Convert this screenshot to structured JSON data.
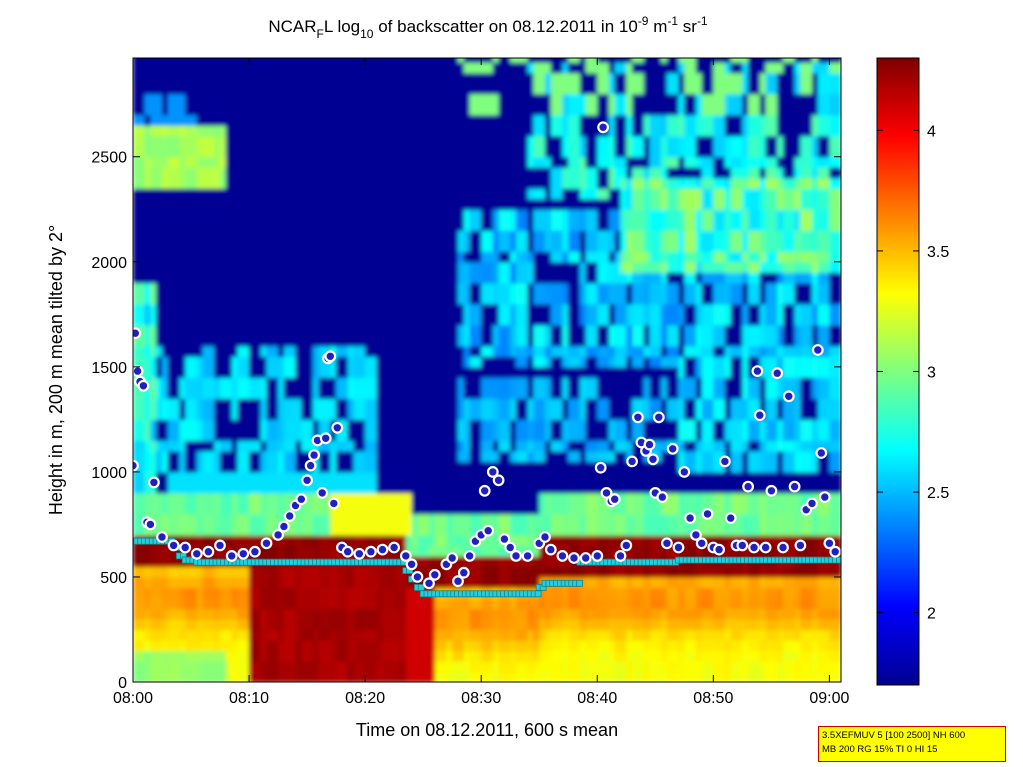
{
  "chart_data": {
    "type": "heatmap",
    "title": {
      "prefix": "NCAR",
      "prefix_sub": "F",
      "mid1": "L log",
      "mid1_sub": "10",
      "mid2": " of backscatter on 08.12.2011 in 10",
      "exp1": "-9",
      "unit1": " m",
      "exp2": "-1",
      "unit2": " sr",
      "exp3": "-1"
    },
    "xlabel": "Time on 08.12.2011, 600 s mean",
    "ylabel": "Height in m, 200 m mean tilted by 2°",
    "x_ticks": [
      "08:00",
      "08:10",
      "08:20",
      "08:30",
      "08:40",
      "08:50",
      "09:00"
    ],
    "x_range_minutes": [
      0,
      61
    ],
    "y_ticks": [
      0,
      500,
      1000,
      1500,
      2000,
      2500
    ],
    "ylim": [
      0,
      2970
    ],
    "colorbar": {
      "range": [
        1.7,
        4.3
      ],
      "ticks": [
        "2",
        "2.5",
        "3",
        "3.5",
        "4"
      ],
      "colormap": "jet"
    },
    "series": [
      {
        "marker": "circle",
        "fill": "#2020c0",
        "edge": "#ffffff",
        "points": [
          [
            0.0,
            1030
          ],
          [
            0.2,
            1660
          ],
          [
            0.4,
            1480
          ],
          [
            0.6,
            1430
          ],
          [
            0.9,
            1410
          ],
          [
            1.2,
            760
          ],
          [
            1.5,
            750
          ],
          [
            1.8,
            950
          ],
          [
            2.5,
            690
          ],
          [
            3.5,
            650
          ],
          [
            4.5,
            640
          ],
          [
            5.5,
            610
          ],
          [
            6.5,
            620
          ],
          [
            7.5,
            650
          ],
          [
            8.5,
            600
          ],
          [
            9.5,
            610
          ],
          [
            10.5,
            620
          ],
          [
            11.5,
            660
          ],
          [
            12.5,
            700
          ],
          [
            13,
            740
          ],
          [
            13.5,
            790
          ],
          [
            14,
            840
          ],
          [
            14.5,
            870
          ],
          [
            15,
            960
          ],
          [
            15.3,
            1030
          ],
          [
            15.6,
            1080
          ],
          [
            15.9,
            1150
          ],
          [
            16.3,
            900
          ],
          [
            16.6,
            1160
          ],
          [
            16.8,
            1540
          ],
          [
            17,
            1550
          ],
          [
            17.3,
            850
          ],
          [
            17.6,
            1210
          ],
          [
            18,
            640
          ],
          [
            18.5,
            620
          ],
          [
            19.5,
            610
          ],
          [
            20.5,
            620
          ],
          [
            21.5,
            630
          ],
          [
            22.5,
            640
          ],
          [
            23.5,
            600
          ],
          [
            24,
            560
          ],
          [
            24.5,
            500
          ],
          [
            25.5,
            470
          ],
          [
            26,
            510
          ],
          [
            27,
            560
          ],
          [
            27.5,
            590
          ],
          [
            28,
            480
          ],
          [
            28.5,
            520
          ],
          [
            29,
            600
          ],
          [
            29.5,
            670
          ],
          [
            30,
            700
          ],
          [
            30.3,
            910
          ],
          [
            30.6,
            720
          ],
          [
            31,
            1000
          ],
          [
            31.5,
            960
          ],
          [
            32,
            680
          ],
          [
            32.5,
            640
          ],
          [
            33,
            600
          ],
          [
            34,
            600
          ],
          [
            35,
            660
          ],
          [
            35.5,
            690
          ],
          [
            36,
            630
          ],
          [
            37,
            600
          ],
          [
            38,
            590
          ],
          [
            39,
            590
          ],
          [
            40,
            600
          ],
          [
            40.3,
            1020
          ],
          [
            40.5,
            2640
          ],
          [
            40.8,
            900
          ],
          [
            41.2,
            860
          ],
          [
            41.5,
            870
          ],
          [
            42,
            600
          ],
          [
            42.5,
            650
          ],
          [
            43,
            1050
          ],
          [
            43.5,
            1260
          ],
          [
            43.8,
            1140
          ],
          [
            44.2,
            1100
          ],
          [
            44.5,
            1130
          ],
          [
            44.8,
            1060
          ],
          [
            45,
            900
          ],
          [
            45.3,
            1260
          ],
          [
            45.6,
            880
          ],
          [
            46,
            660
          ],
          [
            46.5,
            1110
          ],
          [
            47,
            640
          ],
          [
            47.5,
            1000
          ],
          [
            48,
            780
          ],
          [
            48.5,
            700
          ],
          [
            49,
            660
          ],
          [
            49.5,
            800
          ],
          [
            50,
            640
          ],
          [
            50.5,
            630
          ],
          [
            51,
            1050
          ],
          [
            51.5,
            780
          ],
          [
            52,
            650
          ],
          [
            52.5,
            650
          ],
          [
            53,
            930
          ],
          [
            53.5,
            640
          ],
          [
            53.8,
            1480
          ],
          [
            54,
            1270
          ],
          [
            54.5,
            640
          ],
          [
            55,
            910
          ],
          [
            55.5,
            1470
          ],
          [
            56,
            640
          ],
          [
            56.5,
            1360
          ],
          [
            57,
            930
          ],
          [
            57.5,
            650
          ],
          [
            58,
            820
          ],
          [
            58.5,
            850
          ],
          [
            59,
            1580
          ],
          [
            59.3,
            1090
          ],
          [
            59.6,
            880
          ],
          [
            60,
            660
          ],
          [
            60.5,
            620
          ]
        ]
      },
      {
        "marker": "square",
        "fill": "#20d0e0",
        "edge": "#208080",
        "steps": [
          [
            0,
            3.5,
            670
          ],
          [
            3.5,
            4,
            640
          ],
          [
            4,
            4.5,
            600
          ],
          [
            4.5,
            5.5,
            580
          ],
          [
            5.5,
            23.5,
            570
          ],
          [
            23.5,
            24,
            530
          ],
          [
            24,
            24.5,
            490
          ],
          [
            24.5,
            25,
            450
          ],
          [
            25,
            35,
            420
          ],
          [
            35,
            35.5,
            450
          ],
          [
            35.5,
            38.5,
            470
          ],
          [
            38.5,
            47,
            570
          ],
          [
            47,
            61,
            580
          ]
        ]
      }
    ]
  },
  "info_box": {
    "line1": "3.5XEFMUV 5 [100 2500] NH 600",
    "line2": "MB 200 RG 15% TI 0 HI 15"
  }
}
